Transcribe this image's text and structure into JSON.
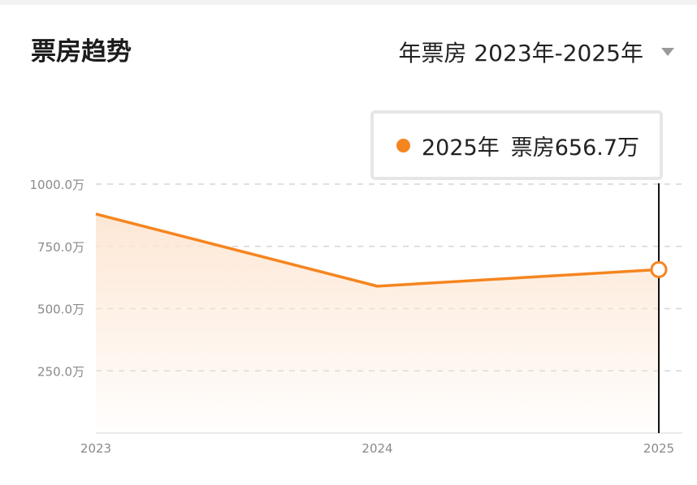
{
  "header": {
    "title": "票房趋势",
    "selector_label": "年票房 2023年-2025年",
    "caret_icon": "triangle-down-icon"
  },
  "tooltip": {
    "year_label": "2025年",
    "value_label": "票房656.7万"
  },
  "colors": {
    "accent": "#f5851f",
    "fill_top": "#fde6d3",
    "grid": "#d6d6d6",
    "axis_text": "#8a8a8a"
  },
  "chart_data": {
    "type": "area",
    "title": "票房趋势",
    "xlabel": "",
    "ylabel": "",
    "categories": [
      "2023",
      "2024",
      "2025"
    ],
    "series": [
      {
        "values": [
          880,
          590,
          656.7
        ]
      }
    ],
    "ylim": [
      0,
      1000
    ],
    "yticks": [
      250,
      500,
      750,
      1000
    ],
    "ytick_labels": [
      "250.0万",
      "500.0万",
      "750.0万",
      "1000.0万"
    ],
    "grid": true,
    "highlighted_category": "2025"
  }
}
